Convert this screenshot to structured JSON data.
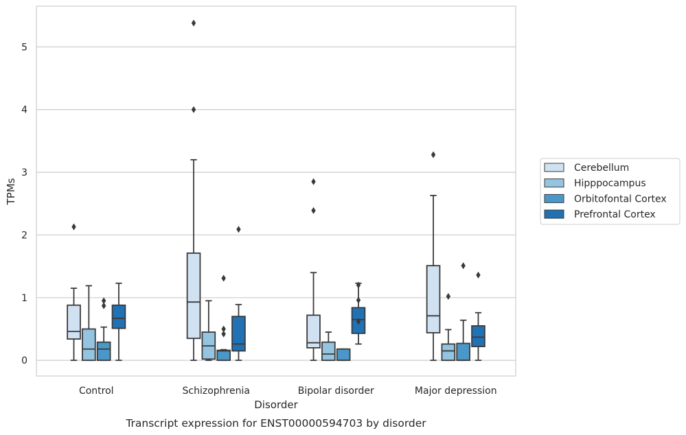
{
  "chart_data": {
    "type": "box",
    "caption": "Transcript expression for ENST00000594703 by disorder",
    "xlabel": "Disorder",
    "ylabel": "TPMs",
    "ylim": [
      -0.25,
      5.65
    ],
    "yticks": [
      0,
      1,
      2,
      3,
      4,
      5
    ],
    "grid": "horizontal",
    "legend_position": "right",
    "categories": [
      "Control",
      "Schizophrenia",
      "Bipolar disorder",
      "Major depression"
    ],
    "series": [
      {
        "name": "Cerebellum",
        "color": "#d0e1f2",
        "boxes": [
          {
            "whisker_low": 0,
            "q1": 0.34,
            "median": 0.46,
            "q3": 0.88,
            "whisker_high": 1.15,
            "outliers": [
              2.13
            ]
          },
          {
            "whisker_low": 0,
            "q1": 0.35,
            "median": 0.93,
            "q3": 1.71,
            "whisker_high": 3.2,
            "outliers": [
              4.0,
              5.38
            ]
          },
          {
            "whisker_low": 0,
            "q1": 0.2,
            "median": 0.28,
            "q3": 0.72,
            "whisker_high": 1.4,
            "outliers": [
              2.39,
              2.85
            ]
          },
          {
            "whisker_low": 0,
            "q1": 0.44,
            "median": 0.71,
            "q3": 1.51,
            "whisker_high": 2.63,
            "outliers": [
              3.28
            ]
          }
        ]
      },
      {
        "name": "Hipppocampus",
        "color": "#94c4df",
        "boxes": [
          {
            "whisker_low": 0,
            "q1": 0,
            "median": 0.18,
            "q3": 0.5,
            "whisker_high": 1.19,
            "outliers": []
          },
          {
            "whisker_low": 0,
            "q1": 0.02,
            "median": 0.23,
            "q3": 0.45,
            "whisker_high": 0.95,
            "outliers": []
          },
          {
            "whisker_low": 0,
            "q1": 0,
            "median": 0.1,
            "q3": 0.29,
            "whisker_high": 0.45,
            "outliers": []
          },
          {
            "whisker_low": 0,
            "q1": 0,
            "median": 0.15,
            "q3": 0.26,
            "whisker_high": 0.49,
            "outliers": [
              1.02
            ]
          }
        ]
      },
      {
        "name": "Orbitofontal Cortex",
        "color": "#4a98c9",
        "boxes": [
          {
            "whisker_low": 0,
            "q1": 0,
            "median": 0.18,
            "q3": 0.29,
            "whisker_high": 0.53,
            "outliers": [
              0.87,
              0.95
            ]
          },
          {
            "whisker_low": 0,
            "q1": 0,
            "median": 0.15,
            "q3": 0.16,
            "whisker_high": 0.17,
            "outliers": [
              0.42,
              0.5,
              1.31
            ]
          },
          {
            "whisker_low": 0,
            "q1": 0,
            "median": 0.0,
            "q3": 0.18,
            "whisker_high": 0.18,
            "outliers": []
          },
          {
            "whisker_low": 0,
            "q1": 0,
            "median": 0.0,
            "q3": 0.27,
            "whisker_high": 0.64,
            "outliers": [
              1.51
            ]
          }
        ]
      },
      {
        "name": "Prefrontal Cortex",
        "color": "#2171b5",
        "boxes": [
          {
            "whisker_low": 0,
            "q1": 0.51,
            "median": 0.67,
            "q3": 0.88,
            "whisker_high": 1.23,
            "outliers": []
          },
          {
            "whisker_low": 0,
            "q1": 0.15,
            "median": 0.26,
            "q3": 0.7,
            "whisker_high": 0.89,
            "outliers": [
              2.09
            ]
          },
          {
            "whisker_low": 0.26,
            "q1": 0.43,
            "median": 0.65,
            "q3": 0.84,
            "whisker_high": 1.23,
            "outliers": [
              0.62,
              0.96,
              1.2
            ]
          },
          {
            "whisker_low": 0,
            "q1": 0.22,
            "median": 0.37,
            "q3": 0.55,
            "whisker_high": 0.76,
            "outliers": [
              1.36
            ]
          }
        ]
      }
    ]
  }
}
